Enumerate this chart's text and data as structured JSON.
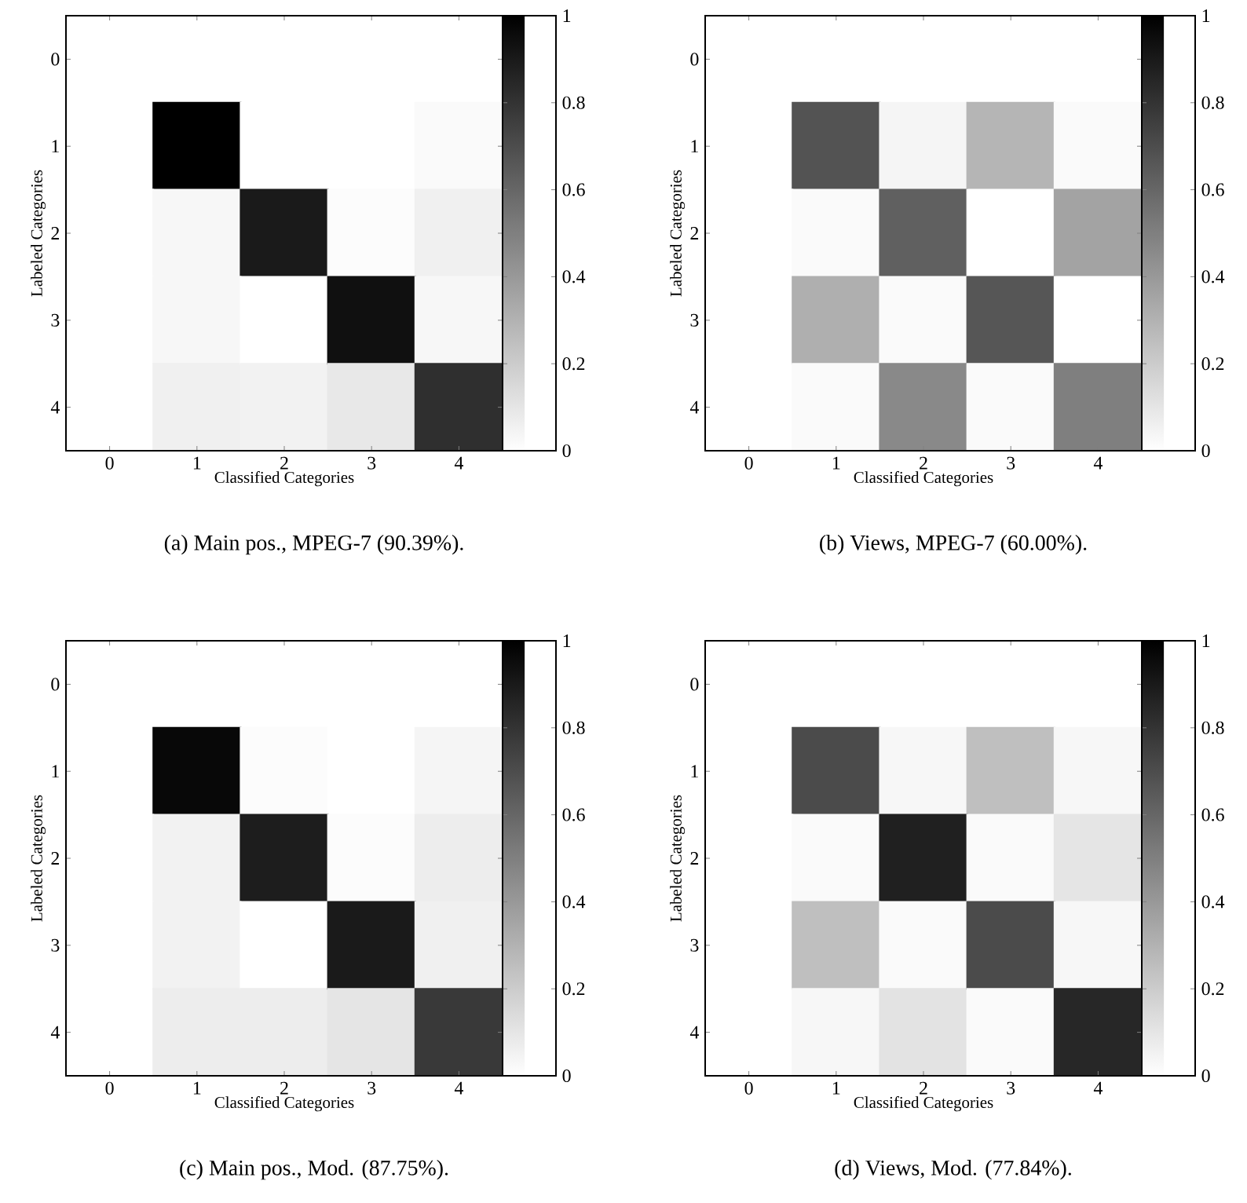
{
  "chart_data": [
    {
      "type": "heatmap",
      "title": "(a) Main pos., MPEG-7 (90.39%).",
      "xlabel": "Classified Categories",
      "ylabel": "Labeled Categories",
      "categories": [
        "0",
        "1",
        "2",
        "3",
        "4"
      ],
      "y_categories": [
        "0",
        "1",
        "2",
        "3",
        "4"
      ],
      "cells": [
        [
          0,
          0,
          0,
          0,
          0
        ],
        [
          0,
          1.0,
          0,
          0,
          0.02
        ],
        [
          0,
          0.03,
          0.89,
          0.01,
          0.06
        ],
        [
          0,
          0.03,
          0,
          0.93,
          0.03
        ],
        [
          0,
          0.06,
          0.05,
          0.09,
          0.81
        ]
      ],
      "clim": [
        0,
        1
      ],
      "cticks": [
        0,
        0.2,
        0.4,
        0.6,
        0.8,
        1
      ]
    },
    {
      "type": "heatmap",
      "title": "(b) Views, MPEG-7 (60.00%).",
      "xlabel": "Classified Categories",
      "ylabel": "Labeled Categories",
      "categories": [
        "0",
        "1",
        "2",
        "3",
        "4"
      ],
      "y_categories": [
        "0",
        "1",
        "2",
        "3",
        "4"
      ],
      "cells": [
        [
          0,
          0,
          0,
          0,
          0
        ],
        [
          0,
          0.67,
          0.04,
          0.29,
          0.02
        ],
        [
          0,
          0.02,
          0.62,
          0,
          0.36
        ],
        [
          0,
          0.31,
          0.02,
          0.66,
          0
        ],
        [
          0,
          0.02,
          0.46,
          0.02,
          0.5
        ]
      ],
      "clim": [
        0,
        1
      ],
      "cticks": [
        0,
        0.2,
        0.4,
        0.6,
        0.8,
        1
      ]
    },
    {
      "type": "heatmap",
      "title": "(c) Main pos., Mod. (87.75%).",
      "xlabel": "Classified Categories",
      "ylabel": "Labeled Categories",
      "categories": [
        "0",
        "1",
        "2",
        "3",
        "4"
      ],
      "y_categories": [
        "0",
        "1",
        "2",
        "3",
        "4"
      ],
      "cells": [
        [
          0,
          0,
          0,
          0,
          0
        ],
        [
          0,
          0.96,
          0.01,
          0,
          0.04
        ],
        [
          0,
          0.05,
          0.88,
          0.01,
          0.07
        ],
        [
          0,
          0.05,
          0,
          0.89,
          0.06
        ],
        [
          0,
          0.07,
          0.07,
          0.1,
          0.77
        ]
      ],
      "clim": [
        0,
        1
      ],
      "cticks": [
        0,
        0.2,
        0.4,
        0.6,
        0.8,
        1
      ]
    },
    {
      "type": "heatmap",
      "title": "(d) Views, Mod. (77.84%).",
      "xlabel": "Classified Categories",
      "ylabel": "Labeled Categories",
      "categories": [
        "0",
        "1",
        "2",
        "3",
        "4"
      ],
      "y_categories": [
        "0",
        "1",
        "2",
        "3",
        "4"
      ],
      "cells": [
        [
          0,
          0,
          0,
          0,
          0
        ],
        [
          0,
          0.7,
          0.03,
          0.25,
          0.03
        ],
        [
          0,
          0.02,
          0.87,
          0.02,
          0.1
        ],
        [
          0,
          0.25,
          0.02,
          0.7,
          0.03
        ],
        [
          0,
          0.03,
          0.11,
          0.02,
          0.84
        ]
      ],
      "clim": [
        0,
        1
      ],
      "cticks": [
        0,
        0.2,
        0.4,
        0.6,
        0.8,
        1
      ]
    }
  ]
}
